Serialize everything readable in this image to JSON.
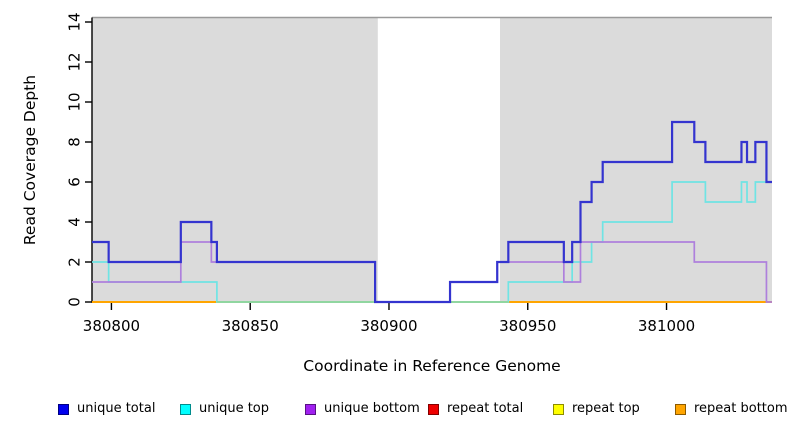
{
  "chart_data": {
    "type": "line",
    "step": true,
    "title": "",
    "xlabel": "Coordinate in Reference Genome",
    "ylabel": "Read Coverage Depth",
    "xlim": [
      380793,
      381038
    ],
    "ylim": [
      0,
      14
    ],
    "x_ticks": [
      "380800",
      "380850",
      "380900",
      "380950",
      "381000"
    ],
    "x_tick_values": [
      380800,
      380850,
      380900,
      380950,
      381000
    ],
    "y_ticks": [
      "0",
      "2",
      "4",
      "6",
      "8",
      "10",
      "12",
      "14"
    ],
    "y_tick_values": [
      0,
      2,
      4,
      6,
      8,
      10,
      12,
      14
    ],
    "grid": false,
    "legend_position": "bottom",
    "background_bands": [
      {
        "from": 380793,
        "to": 380896,
        "fill": "#DBDBDB"
      },
      {
        "from": 380896,
        "to": 380940,
        "fill": "#FFFFFF"
      },
      {
        "from": 380940,
        "to": 381038,
        "fill": "#DBDBDB"
      }
    ],
    "overlap_artifact": {
      "from": 380838,
      "to": 380943,
      "depth": 0,
      "color": "#8FD79E",
      "note": "pale green baseline where unique-top(cyan) and repeat lines overlap at depth 0"
    },
    "series": [
      {
        "key": "unique_total",
        "label": "unique total",
        "color": "#3434CF",
        "legend_color": "#0000EE",
        "width": 2.2,
        "points": [
          [
            380793,
            3
          ],
          [
            380799,
            2
          ],
          [
            380825,
            4
          ],
          [
            380836,
            3
          ],
          [
            380838,
            2
          ],
          [
            380895,
            0
          ],
          [
            380922,
            1
          ],
          [
            380939,
            2
          ],
          [
            380943,
            3
          ],
          [
            380963,
            2
          ],
          [
            380966,
            3
          ],
          [
            380969,
            5
          ],
          [
            380973,
            6
          ],
          [
            380977,
            7
          ],
          [
            381002,
            9
          ],
          [
            381010,
            8
          ],
          [
            381014,
            7
          ],
          [
            381027,
            8
          ],
          [
            381029,
            7
          ],
          [
            381032,
            8
          ],
          [
            381036,
            6
          ],
          [
            381038,
            6
          ]
        ]
      },
      {
        "key": "unique_top",
        "label": "unique top",
        "color": "#6FE4E4",
        "legend_color": "#00FFFF",
        "width": 1.7,
        "points": [
          [
            380793,
            2
          ],
          [
            380799,
            1
          ],
          [
            380838,
            0
          ],
          [
            380943,
            1
          ],
          [
            380966,
            2
          ],
          [
            380973,
            3
          ],
          [
            380977,
            4
          ],
          [
            381002,
            6
          ],
          [
            381014,
            5
          ],
          [
            381027,
            6
          ],
          [
            381029,
            5
          ],
          [
            381032,
            6
          ],
          [
            381038,
            6
          ]
        ]
      },
      {
        "key": "unique_bottom",
        "label": "unique bottom",
        "color": "#AE80DC",
        "legend_color": "#A020F0",
        "width": 1.7,
        "points": [
          [
            380793,
            1
          ],
          [
            380825,
            3
          ],
          [
            380836,
            2
          ],
          [
            380895,
            0
          ],
          [
            380922,
            1
          ],
          [
            380939,
            2
          ],
          [
            380963,
            1
          ],
          [
            380969,
            3
          ],
          [
            381010,
            2
          ],
          [
            381036,
            0
          ],
          [
            381038,
            0
          ]
        ]
      },
      {
        "key": "repeat_total",
        "label": "repeat total",
        "color": "#CC0000",
        "legend_color": "#EE0000",
        "width": 1.7,
        "points": [
          [
            380793,
            0
          ],
          [
            381038,
            0
          ]
        ]
      },
      {
        "key": "repeat_top",
        "label": "repeat top",
        "color": "#FFFF00",
        "legend_color": "#FFFF00",
        "width": 1.7,
        "points": [
          [
            380793,
            0
          ],
          [
            381038,
            0
          ]
        ]
      },
      {
        "key": "repeat_bottom",
        "label": "repeat bottom",
        "color": "#FFA500",
        "legend_color": "#FFA500",
        "width": 2,
        "points": [
          [
            380793,
            0
          ],
          [
            381038,
            0
          ]
        ]
      }
    ]
  },
  "axes": {
    "x_label": "Coordinate in Reference Genome",
    "y_label": "Read Coverage Depth"
  }
}
